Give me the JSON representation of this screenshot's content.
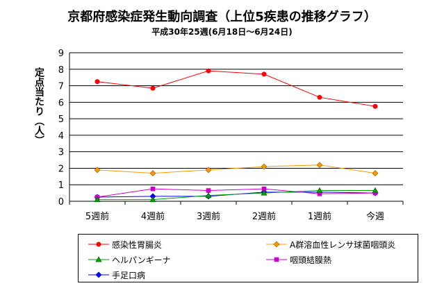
{
  "title": "京都府感染症発生動向調査（上位5疾患の推移グラフ）",
  "subtitle": "平成30年25週(6月18日～6月24日)",
  "chart_data": {
    "type": "line",
    "ylabel": "定点当たり（人）",
    "ylim": [
      0,
      9
    ],
    "yticks": [
      0,
      1,
      2,
      3,
      4,
      5,
      6,
      7,
      8,
      9
    ],
    "grid": true,
    "legend_position": "bottom",
    "categories": [
      "5週前",
      "4週前",
      "3週前",
      "2週前",
      "1週前",
      "今週"
    ],
    "series": [
      {
        "name": "感染性胃腸炎",
        "color": "#ff0000",
        "marker": "circle",
        "values": [
          7.25,
          6.85,
          7.9,
          7.7,
          6.3,
          5.75
        ]
      },
      {
        "name": "A群溶血性レンサ球菌咽頭炎",
        "color": "#ff9900",
        "marker": "diamond",
        "values": [
          1.9,
          1.7,
          1.9,
          2.1,
          2.2,
          1.7
        ]
      },
      {
        "name": "ヘルパンギーナ",
        "color": "#00a000",
        "marker": "triangle",
        "values": [
          0.1,
          0.1,
          0.35,
          0.5,
          0.65,
          0.65
        ]
      },
      {
        "name": "咽頭結膜熱",
        "color": "#cc00cc",
        "marker": "square",
        "values": [
          0.25,
          0.75,
          0.65,
          0.75,
          0.45,
          0.5
        ]
      },
      {
        "name": "手足口病",
        "color": "#0000ff",
        "marker": "diamond",
        "values": [
          0.25,
          0.3,
          0.3,
          0.55,
          0.55,
          0.5
        ]
      }
    ]
  }
}
